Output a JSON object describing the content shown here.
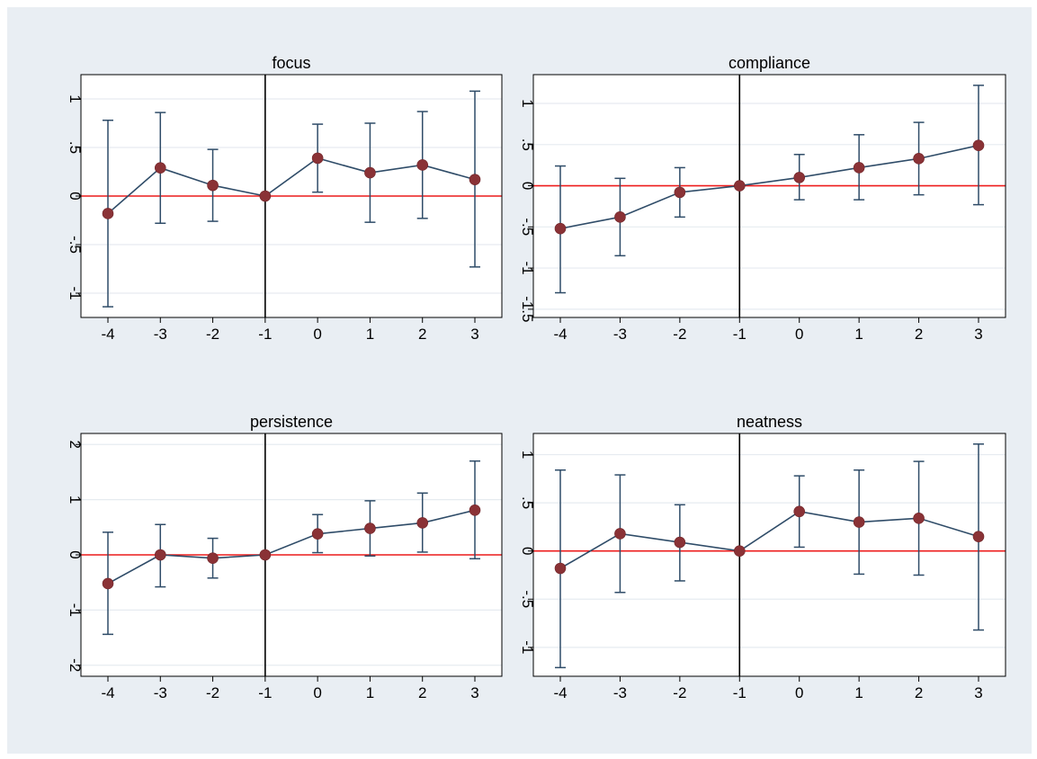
{
  "figure": {
    "background": "#e9eef3",
    "plot_background": "#ffffff",
    "grid_color": "#e6ebf0",
    "series_color": "#2f4c68",
    "marker_color": "#8a3236",
    "reference_line_color": "#ee1c1c",
    "event_line_color": "#000000"
  },
  "chart_data": [
    {
      "type": "line",
      "title": "focus",
      "x": [
        -4,
        -3,
        -2,
        -1,
        0,
        1,
        2,
        3
      ],
      "x_tick_labels": [
        "-4",
        "-3",
        "-2",
        "-1",
        "0",
        "1",
        "2",
        "3"
      ],
      "y": [
        -0.18,
        0.29,
        0.11,
        0.0,
        0.39,
        0.24,
        0.32,
        0.17
      ],
      "ci_low": [
        -1.14,
        -0.28,
        -0.26,
        0.0,
        0.04,
        -0.27,
        -0.23,
        -0.73
      ],
      "ci_high": [
        0.78,
        0.86,
        0.48,
        0.0,
        0.74,
        0.75,
        0.87,
        1.08
      ],
      "ylim": [
        -1.25,
        1.25
      ],
      "y_ticks": [
        -1,
        -0.5,
        0,
        0.5,
        1
      ],
      "y_tick_labels": [
        "-1",
        "-.5",
        "0",
        ".5",
        "1"
      ],
      "reference_y": 0,
      "event_x": -1,
      "grid": true
    },
    {
      "type": "line",
      "title": "compliance",
      "x": [
        -4,
        -3,
        -2,
        -1,
        0,
        1,
        2,
        3
      ],
      "x_tick_labels": [
        "-4",
        "-3",
        "-2",
        "-1",
        "0",
        "1",
        "2",
        "3"
      ],
      "y": [
        -0.52,
        -0.38,
        -0.08,
        0.0,
        0.1,
        0.22,
        0.33,
        0.49
      ],
      "ci_low": [
        -1.3,
        -0.85,
        -0.38,
        0.0,
        -0.17,
        -0.17,
        -0.11,
        -0.23
      ],
      "ci_high": [
        0.24,
        0.09,
        0.22,
        0.0,
        0.38,
        0.62,
        0.77,
        1.22
      ],
      "ylim": [
        -1.6,
        1.35
      ],
      "y_ticks": [
        -1.5,
        -1,
        -0.5,
        0,
        0.5,
        1
      ],
      "y_tick_labels": [
        "-1.5",
        "-1",
        "-.5",
        "0",
        ".5",
        "1"
      ],
      "reference_y": 0,
      "event_x": -1,
      "grid": true
    },
    {
      "type": "line",
      "title": "persistence",
      "x": [
        -4,
        -3,
        -2,
        -1,
        0,
        1,
        2,
        3
      ],
      "x_tick_labels": [
        "-4",
        "-3",
        "-2",
        "-1",
        "0",
        "1",
        "2",
        "3"
      ],
      "y": [
        -0.52,
        0.0,
        -0.06,
        0.0,
        0.38,
        0.48,
        0.58,
        0.81
      ],
      "ci_low": [
        -1.44,
        -0.58,
        -0.42,
        0.0,
        0.04,
        -0.02,
        0.05,
        -0.07
      ],
      "ci_high": [
        0.41,
        0.55,
        0.3,
        0.0,
        0.73,
        0.98,
        1.12,
        1.7
      ],
      "ylim": [
        -2.2,
        2.2
      ],
      "y_ticks": [
        -2,
        -1,
        0,
        1,
        2
      ],
      "y_tick_labels": [
        "-2",
        "-1",
        "0",
        "1",
        "2"
      ],
      "reference_y": 0,
      "event_x": -1,
      "grid": true
    },
    {
      "type": "line",
      "title": "neatness",
      "x": [
        -4,
        -3,
        -2,
        -1,
        0,
        1,
        2,
        3
      ],
      "x_tick_labels": [
        "-4",
        "-3",
        "-2",
        "-1",
        "0",
        "1",
        "2",
        "3"
      ],
      "y": [
        -0.18,
        0.18,
        0.09,
        0.0,
        0.41,
        0.3,
        0.34,
        0.15
      ],
      "ci_low": [
        -1.21,
        -0.43,
        -0.31,
        0.0,
        0.04,
        -0.24,
        -0.25,
        -0.82
      ],
      "ci_high": [
        0.84,
        0.79,
        0.48,
        0.0,
        0.78,
        0.84,
        0.93,
        1.11
      ],
      "ylim": [
        -1.3,
        1.22
      ],
      "y_ticks": [
        -1,
        -0.5,
        0,
        0.5,
        1
      ],
      "y_tick_labels": [
        "-1",
        "-.5",
        "0",
        ".5",
        "1"
      ],
      "reference_y": 0,
      "event_x": -1,
      "grid": true
    }
  ]
}
